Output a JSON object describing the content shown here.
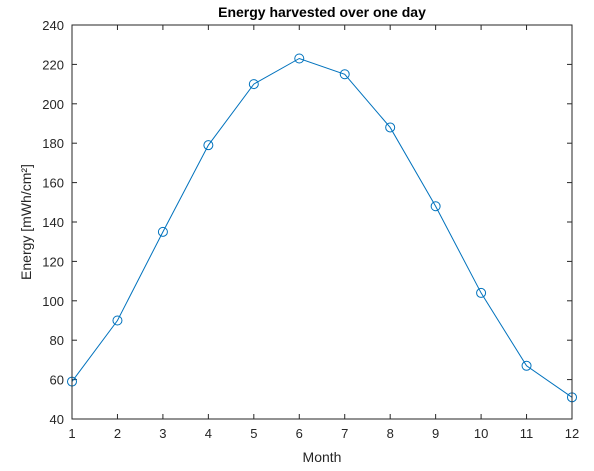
{
  "chart_data": {
    "type": "line",
    "title": "Energy harvested over one day",
    "xlabel": "Month",
    "ylabel": "Energy [mWh/cm²]",
    "x": [
      1,
      2,
      3,
      4,
      5,
      6,
      7,
      8,
      9,
      10,
      11,
      12
    ],
    "series": [
      {
        "values": [
          59,
          90,
          135,
          179,
          210,
          223,
          215,
          188,
          148,
          104,
          67,
          51
        ]
      }
    ],
    "xlim": [
      1,
      12
    ],
    "ylim": [
      40,
      240
    ],
    "xticks": [
      1,
      2,
      3,
      4,
      5,
      6,
      7,
      8,
      9,
      10,
      11,
      12
    ],
    "yticks": [
      40,
      60,
      80,
      100,
      120,
      140,
      160,
      180,
      200,
      220,
      240
    ],
    "grid": false,
    "marker": "circle",
    "line_color": "#0072BD"
  }
}
